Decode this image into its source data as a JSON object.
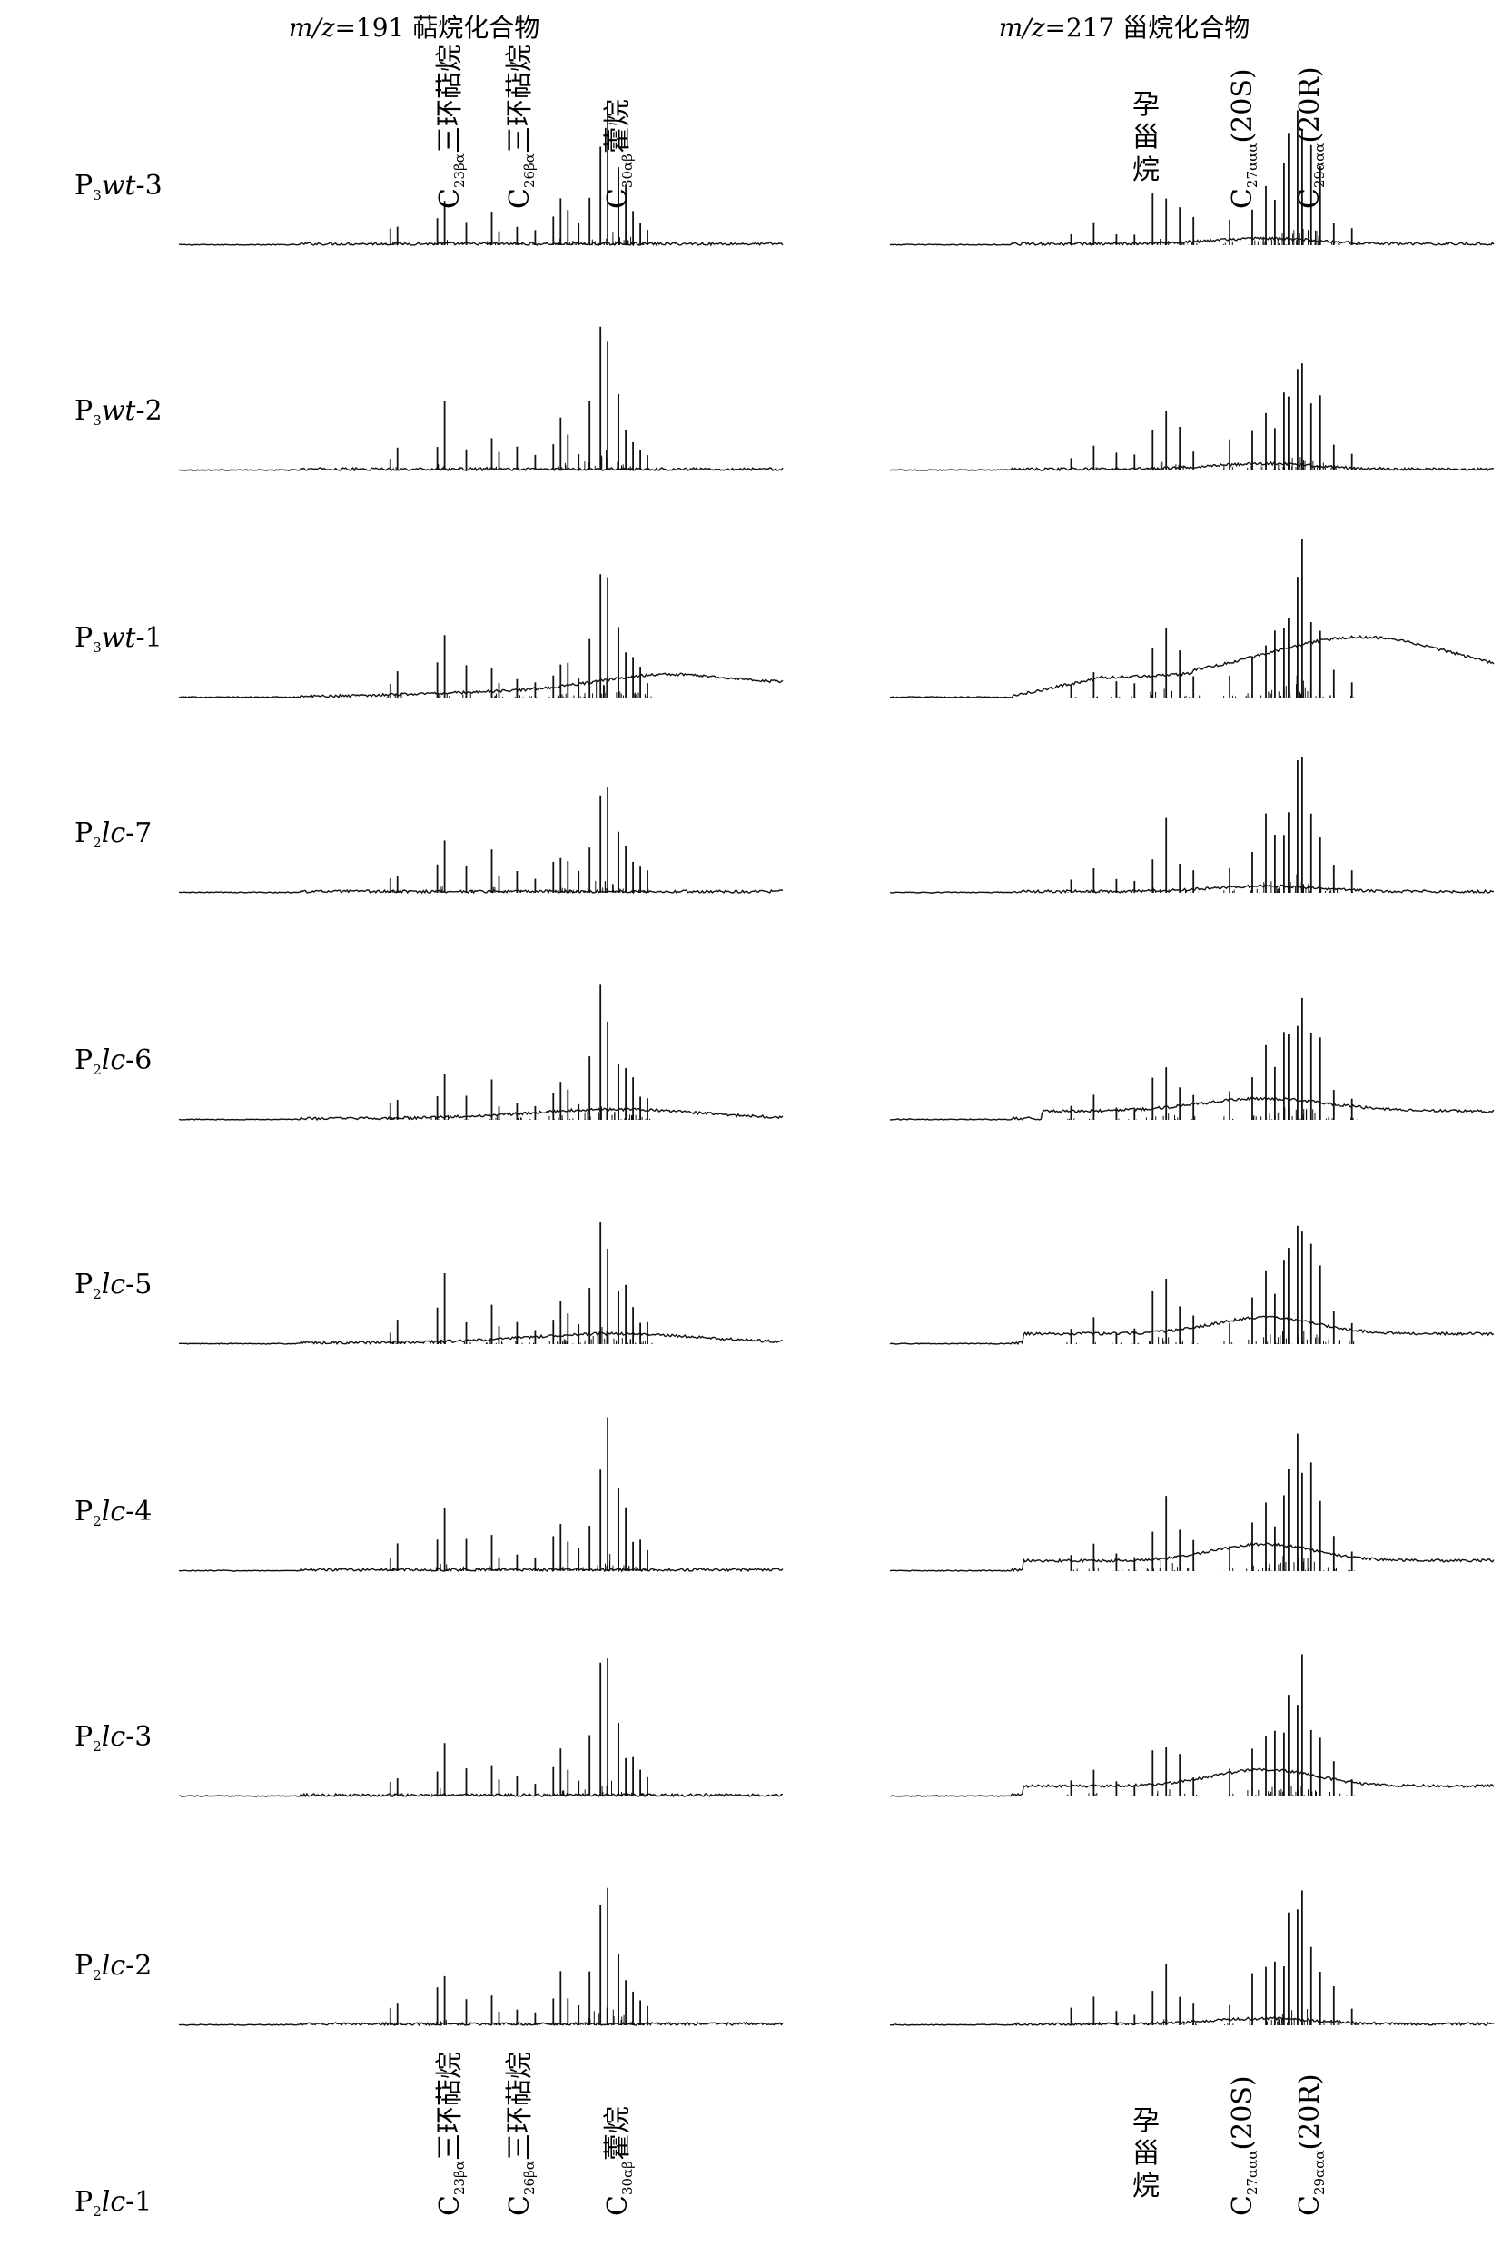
{
  "chart_data": {
    "type": "line",
    "panels": [
      {
        "id": "left",
        "title_italic": "m/z",
        "title_rest": "=191 萜烷化合物",
        "annotations": [
          {
            "main": "C",
            "sub": "23βα",
            "text": "三环萜烷"
          },
          {
            "main": "C",
            "sub": "26βα",
            "text": "三环萜烷"
          },
          {
            "main": "C",
            "sub": "30αβ",
            "text": "藿烷"
          }
        ]
      },
      {
        "id": "right",
        "title_italic": "m/z",
        "title_rest": "=217 甾烷化合物",
        "annotations": [
          {
            "main": "",
            "sub": "",
            "text": "孕甾烷"
          },
          {
            "main": "C",
            "sub": "27ααα",
            "text": "(20S)"
          },
          {
            "main": "C",
            "sub": "29ααα",
            "text": "(20R)"
          }
        ]
      }
    ],
    "samples": [
      {
        "pre": "P",
        "sub": "3",
        "ital": "wt",
        "post": "-3"
      },
      {
        "pre": "P",
        "sub": "3",
        "ital": "wt",
        "post": "-2"
      },
      {
        "pre": "P",
        "sub": "3",
        "ital": "wt",
        "post": "-1"
      },
      {
        "pre": "P",
        "sub": "2",
        "ital": "lc",
        "post": "-7"
      },
      {
        "pre": "P",
        "sub": "2",
        "ital": "lc",
        "post": "-6"
      },
      {
        "pre": "P",
        "sub": "2",
        "ital": "lc",
        "post": "-5"
      },
      {
        "pre": "P",
        "sub": "2",
        "ital": "lc",
        "post": "-4"
      },
      {
        "pre": "P",
        "sub": "2",
        "ital": "lc",
        "post": "-3"
      },
      {
        "pre": "P",
        "sub": "2",
        "ital": "lc",
        "post": "-2"
      },
      {
        "pre": "P",
        "sub": "2",
        "ital": "lc",
        "post": "-1"
      }
    ],
    "trace_color": "#111111"
  }
}
